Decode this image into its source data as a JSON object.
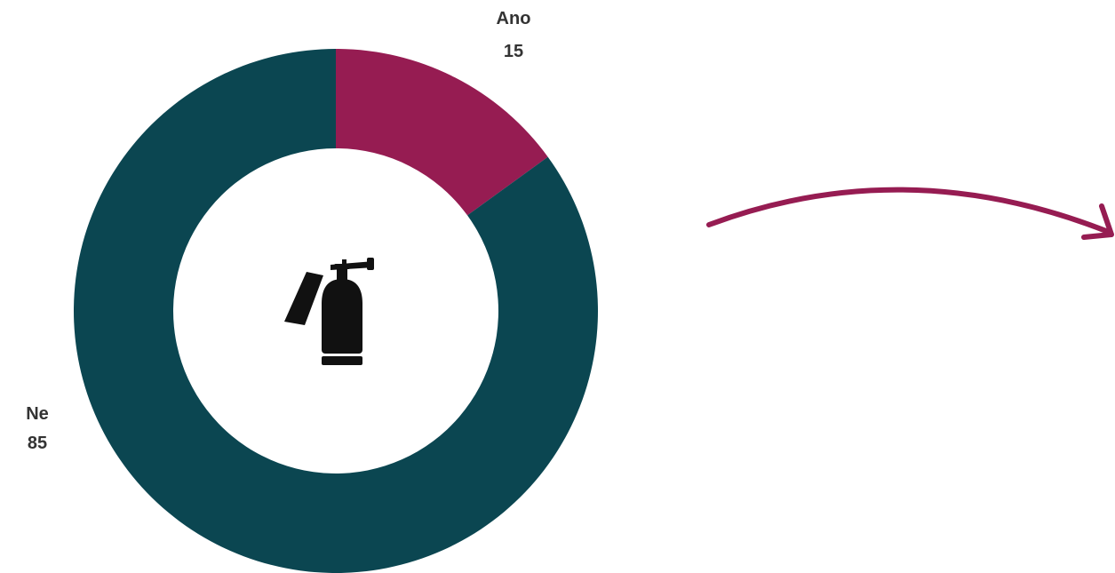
{
  "chart_data": {
    "type": "pie",
    "donut": true,
    "slices": [
      {
        "label": "Ano",
        "value": 15,
        "color": "#961c52"
      },
      {
        "label": "Ne",
        "value": 85,
        "color": "#0b4651"
      }
    ],
    "center_icon": "fire-extinguisher-icon",
    "legend": "none"
  },
  "decorations": {
    "arrow_icon": "curved-arrow-right-icon",
    "arrow_color": "#961c52"
  }
}
